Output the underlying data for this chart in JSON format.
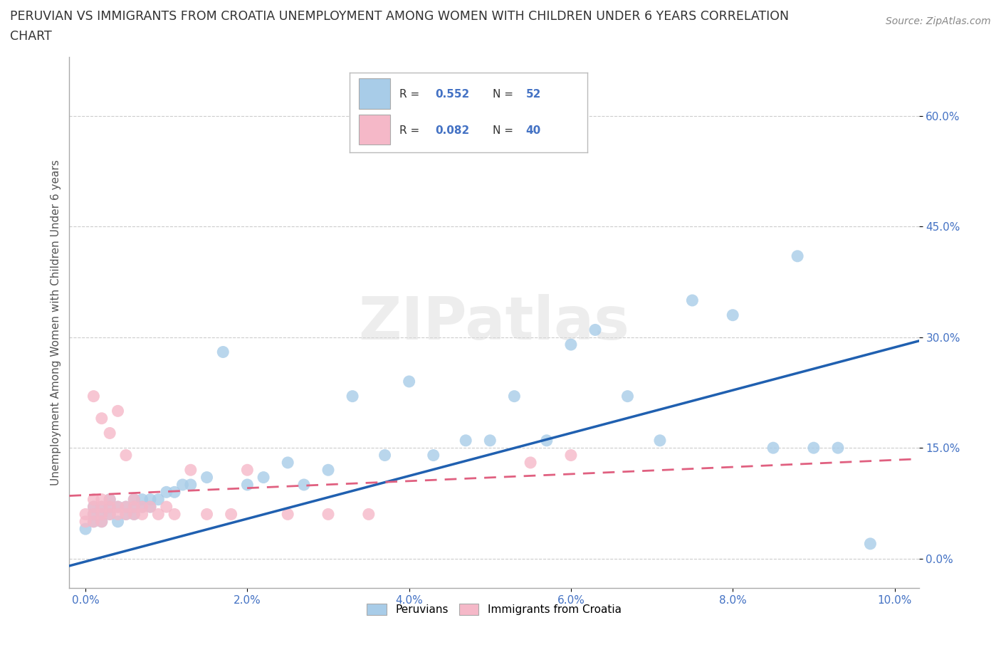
{
  "title_line1": "PERUVIAN VS IMMIGRANTS FROM CROATIA UNEMPLOYMENT AMONG WOMEN WITH CHILDREN UNDER 6 YEARS CORRELATION",
  "title_line2": "CHART",
  "source": "Source: ZipAtlas.com",
  "ylabel": "Unemployment Among Women with Children Under 6 years",
  "xlim": [
    -0.002,
    0.103
  ],
  "ylim": [
    -0.04,
    0.68
  ],
  "xticks": [
    0.0,
    0.02,
    0.04,
    0.06,
    0.08,
    0.1
  ],
  "xticklabels": [
    "0.0%",
    "",
    "",
    "",
    "",
    ""
  ],
  "yticks": [
    0.0,
    0.15,
    0.3,
    0.45,
    0.6
  ],
  "yticklabels": [
    "0.0%",
    "15.0%",
    "30.0%",
    "45.0%",
    "60.0%"
  ],
  "blue_color": "#a8cce8",
  "pink_color": "#f5b8c8",
  "blue_line_color": "#2060b0",
  "pink_line_color": "#e06080",
  "R_blue": 0.552,
  "N_blue": 52,
  "R_pink": 0.082,
  "N_pink": 40,
  "watermark": "ZIPatlas",
  "legend_label_blue": "Peruvians",
  "legend_label_pink": "Immigrants from Croatia",
  "blue_x": [
    0.0,
    0.001,
    0.001,
    0.001,
    0.002,
    0.002,
    0.002,
    0.003,
    0.003,
    0.003,
    0.004,
    0.004,
    0.005,
    0.005,
    0.006,
    0.006,
    0.006,
    0.007,
    0.007,
    0.008,
    0.008,
    0.009,
    0.01,
    0.011,
    0.012,
    0.013,
    0.015,
    0.017,
    0.02,
    0.022,
    0.025,
    0.027,
    0.03,
    0.033,
    0.037,
    0.04,
    0.043,
    0.047,
    0.05,
    0.053,
    0.057,
    0.06,
    0.063,
    0.067,
    0.071,
    0.075,
    0.08,
    0.085,
    0.088,
    0.09,
    0.093,
    0.097
  ],
  "blue_y": [
    0.04,
    0.05,
    0.06,
    0.07,
    0.05,
    0.06,
    0.07,
    0.06,
    0.07,
    0.08,
    0.05,
    0.07,
    0.06,
    0.07,
    0.06,
    0.07,
    0.08,
    0.07,
    0.08,
    0.07,
    0.08,
    0.08,
    0.09,
    0.09,
    0.1,
    0.1,
    0.11,
    0.28,
    0.1,
    0.11,
    0.13,
    0.1,
    0.12,
    0.22,
    0.14,
    0.24,
    0.14,
    0.16,
    0.16,
    0.22,
    0.16,
    0.29,
    0.31,
    0.22,
    0.16,
    0.35,
    0.33,
    0.15,
    0.41,
    0.15,
    0.15,
    0.02
  ],
  "pink_x": [
    0.0,
    0.0,
    0.001,
    0.001,
    0.001,
    0.001,
    0.001,
    0.002,
    0.002,
    0.002,
    0.002,
    0.002,
    0.003,
    0.003,
    0.003,
    0.003,
    0.004,
    0.004,
    0.004,
    0.005,
    0.005,
    0.005,
    0.006,
    0.006,
    0.006,
    0.007,
    0.007,
    0.008,
    0.009,
    0.01,
    0.011,
    0.013,
    0.015,
    0.018,
    0.02,
    0.025,
    0.03,
    0.035,
    0.055,
    0.06
  ],
  "pink_y": [
    0.05,
    0.06,
    0.05,
    0.06,
    0.07,
    0.08,
    0.22,
    0.05,
    0.06,
    0.07,
    0.08,
    0.19,
    0.06,
    0.07,
    0.08,
    0.17,
    0.06,
    0.07,
    0.2,
    0.06,
    0.07,
    0.14,
    0.06,
    0.07,
    0.08,
    0.06,
    0.07,
    0.07,
    0.06,
    0.07,
    0.06,
    0.12,
    0.06,
    0.06,
    0.12,
    0.06,
    0.06,
    0.06,
    0.13,
    0.14
  ],
  "grid_color": "#cccccc",
  "tick_color": "#4472c4",
  "title_color": "#333333",
  "source_color": "#888888"
}
